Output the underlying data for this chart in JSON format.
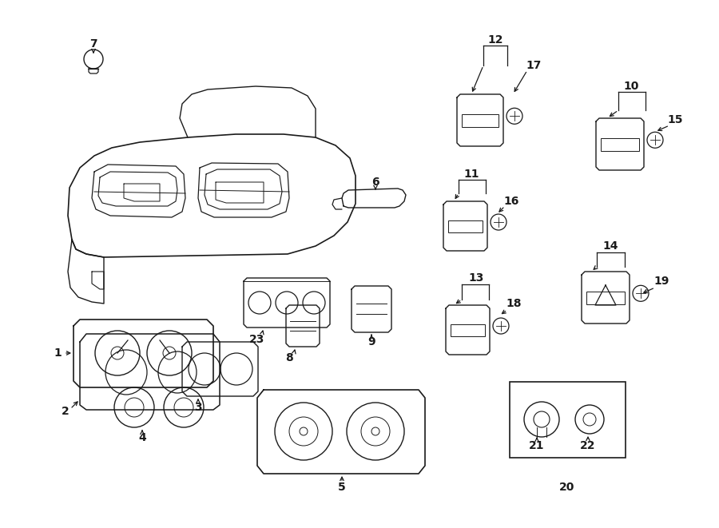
{
  "bg": "#ffffff",
  "lc": "#1a1a1a",
  "lw": 1.0,
  "fs": 10,
  "figsize": [
    9.0,
    6.61
  ],
  "dpi": 100
}
